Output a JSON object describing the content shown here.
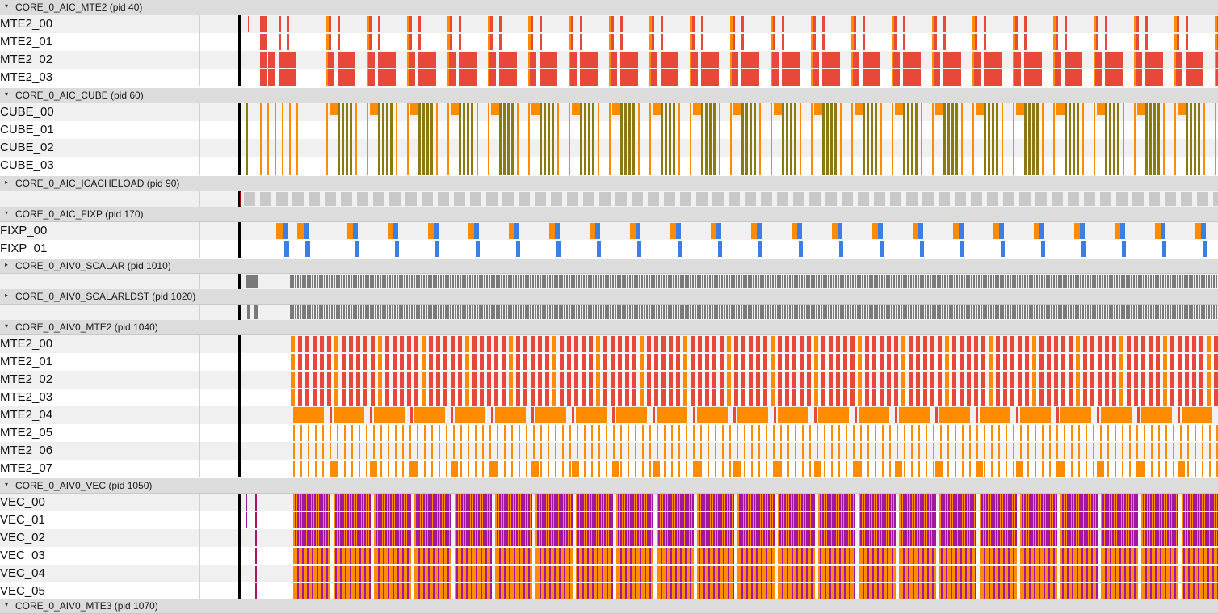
{
  "colors": {
    "mte2": "#e8483a",
    "mte2_alt": "#ff8c00",
    "cube_orange": "#ff8c00",
    "cube_olive": "#8a7a10",
    "fixp_orange": "#ff8c00",
    "fixp_blue": "#3c7ee8",
    "scalar": "#7a7a7a",
    "icache": "#c8c8c8",
    "vec_purple": "#a2179f",
    "vec_orange": "#ff8c00",
    "marker": "#000000",
    "header_bg": "#dcdcdc",
    "row_even": "#f0f0f0",
    "row_odd": "#ffffff"
  },
  "groups": [
    {
      "title": "CORE_0_AIC_MTE2 (pid 40)",
      "expanded": true,
      "icon": "expand-triangle-down-icon",
      "lanes": [
        "MTE2_00",
        "MTE2_01",
        "MTE2_02",
        "MTE2_03"
      ]
    },
    {
      "title": "CORE_0_AIC_CUBE (pid 60)",
      "expanded": true,
      "icon": "expand-triangle-down-icon",
      "lanes": [
        "CUBE_00",
        "CUBE_01",
        "CUBE_02",
        "CUBE_03"
      ]
    },
    {
      "title": "CORE_0_AIC_ICACHELOAD (pid 90)",
      "expanded": false,
      "icon": "collapse-triangle-right-icon",
      "lanes": [
        ""
      ]
    },
    {
      "title": "CORE_0_AIC_FIXP (pid 170)",
      "expanded": true,
      "icon": "expand-triangle-down-icon",
      "lanes": [
        "FIXP_00",
        "FIXP_01"
      ]
    },
    {
      "title": "CORE_0_AIV0_SCALAR (pid 1010)",
      "expanded": false,
      "icon": "collapse-triangle-right-icon",
      "lanes": [
        ""
      ]
    },
    {
      "title": "CORE_0_AIV0_SCALARLDST (pid 1020)",
      "expanded": false,
      "icon": "collapse-triangle-right-icon",
      "lanes": [
        ""
      ]
    },
    {
      "title": "CORE_0_AIV0_MTE2 (pid 1040)",
      "expanded": true,
      "icon": "expand-triangle-down-icon",
      "lanes": [
        "MTE2_00",
        "MTE2_01",
        "MTE2_02",
        "MTE2_03",
        "MTE2_04",
        "MTE2_05",
        "MTE2_06",
        "MTE2_07"
      ]
    },
    {
      "title": "CORE_0_AIV0_VEC (pid 1050)",
      "expanded": true,
      "icon": "expand-triangle-down-icon",
      "lanes": [
        "VEC_00",
        "VEC_01",
        "VEC_02",
        "VEC_03",
        "VEC_04",
        "VEC_05"
      ]
    },
    {
      "title": "CORE_0_AIV0_MTE3 (pid 1070)",
      "expanded": true,
      "icon": "expand-triangle-down-icon",
      "lanes": []
    }
  ]
}
